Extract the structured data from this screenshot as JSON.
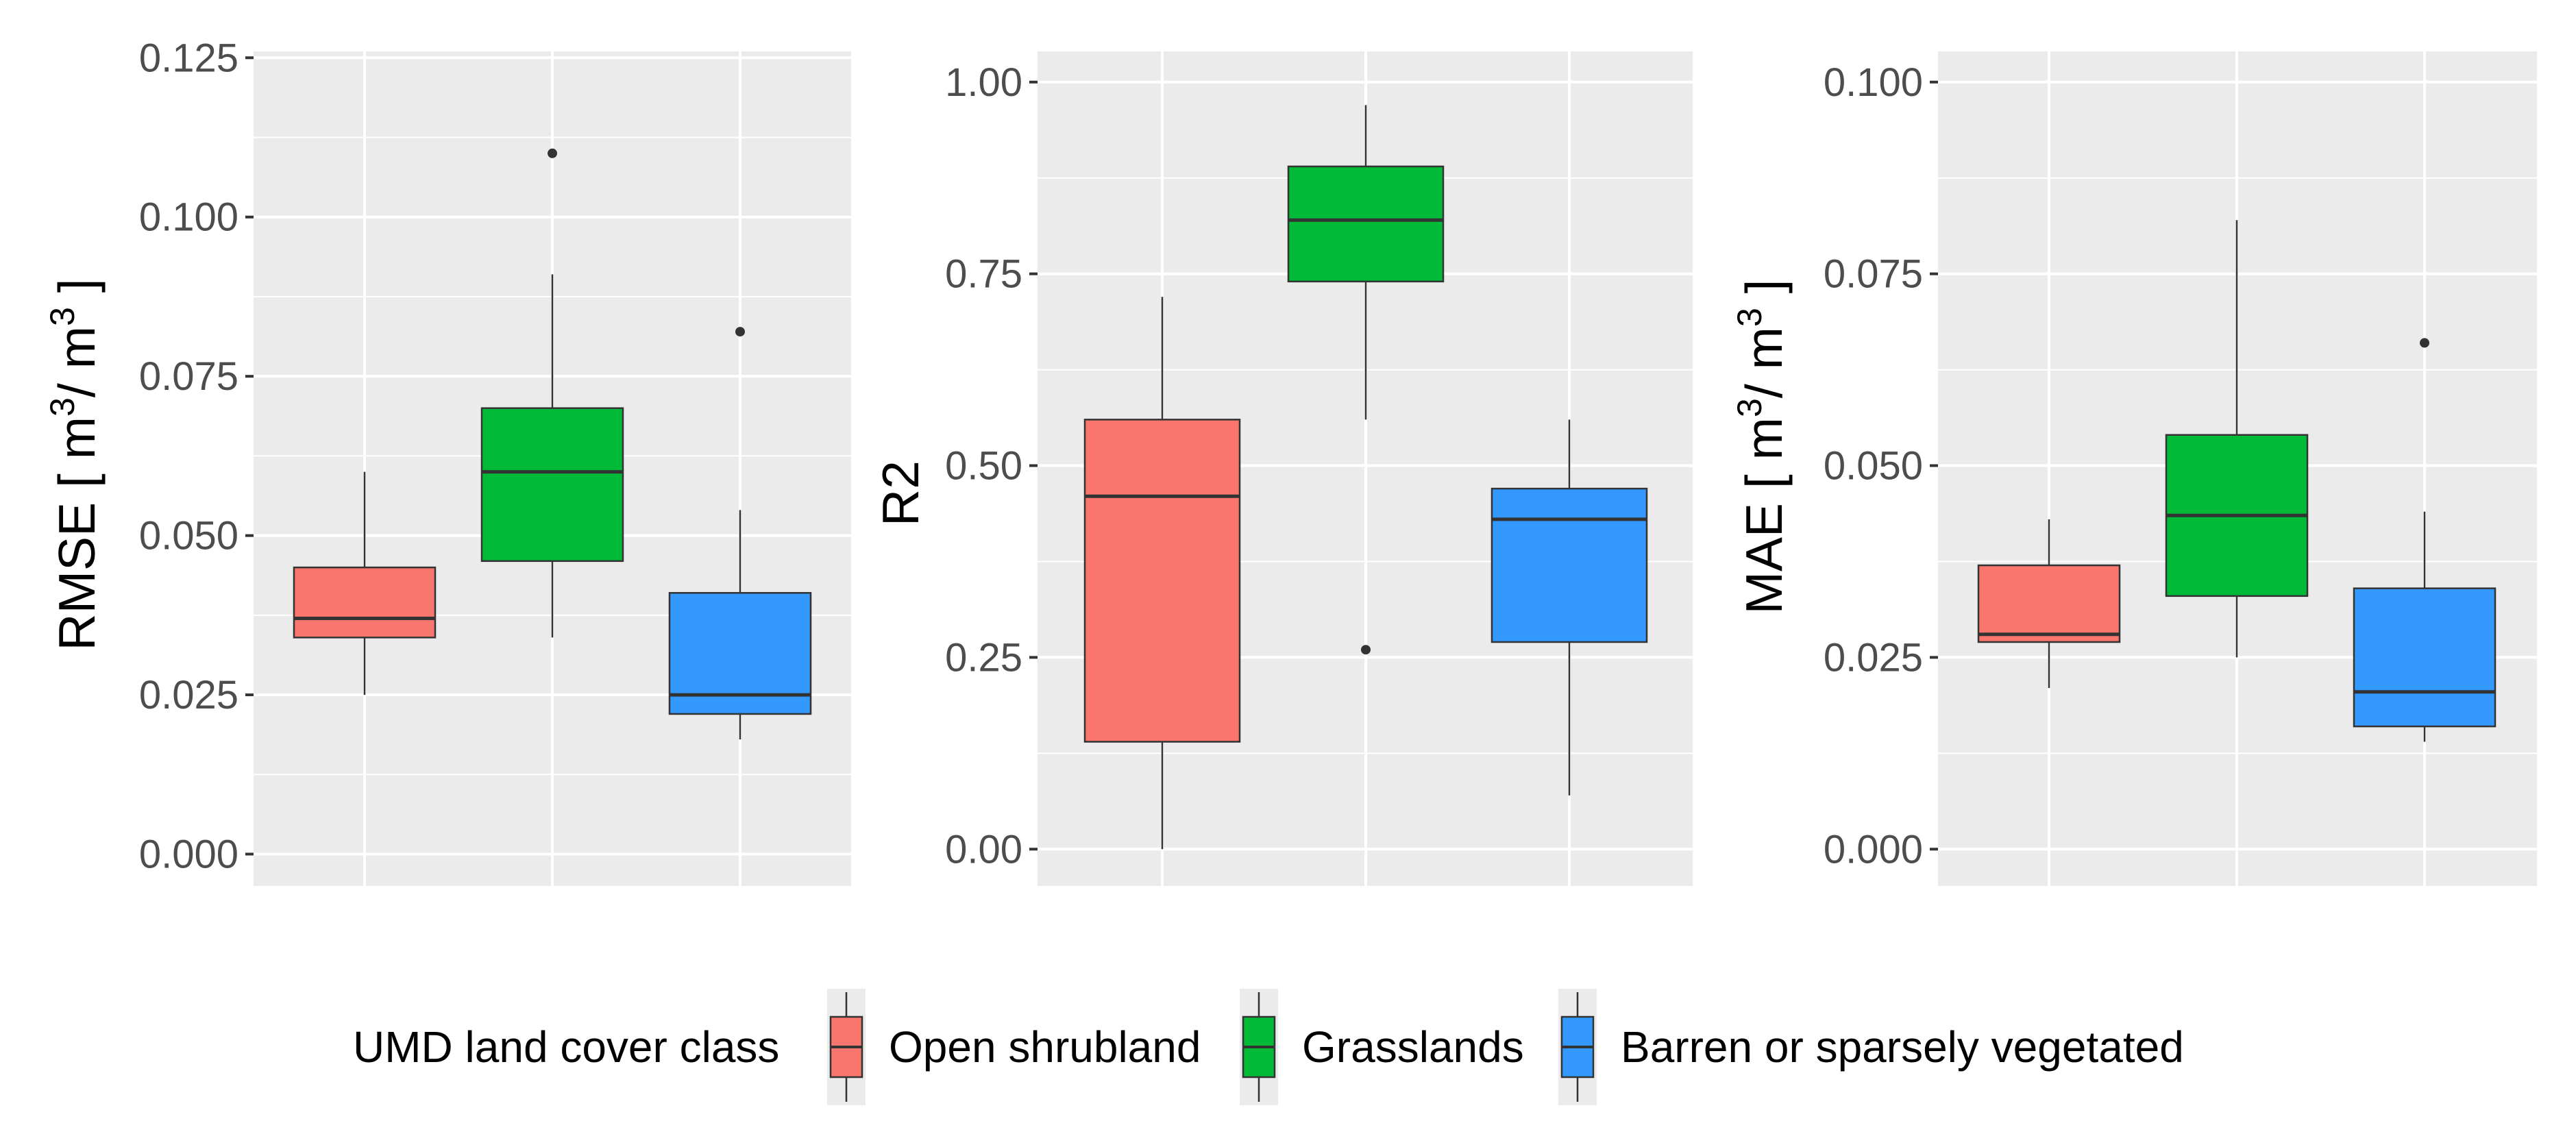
{
  "chart_data": [
    {
      "type": "boxplot",
      "title": "",
      "xlabel": "",
      "ylabel": {
        "main": "RMSE [ m",
        "sup1": "3",
        "mid": "/ m",
        "sup2": "3",
        "end": " ]"
      },
      "ylim": [
        -0.005,
        0.126
      ],
      "yticks": [
        0.0,
        0.025,
        0.05,
        0.075,
        0.1,
        0.125
      ],
      "ytick_labels": [
        "0.000",
        "0.025",
        "0.050",
        "0.075",
        "0.100",
        "0.125"
      ],
      "categories": [
        "Open shrubland",
        "Grasslands",
        "Barren or sparsely vegetated"
      ],
      "boxes": [
        {
          "whisker_low": 0.025,
          "q1": 0.034,
          "median": 0.037,
          "q3": 0.045,
          "whisker_high": 0.06,
          "outliers": []
        },
        {
          "whisker_low": 0.034,
          "q1": 0.046,
          "median": 0.06,
          "q3": 0.07,
          "whisker_high": 0.091,
          "outliers": [
            0.11
          ]
        },
        {
          "whisker_low": 0.018,
          "q1": 0.022,
          "median": 0.025,
          "q3": 0.041,
          "whisker_high": 0.054,
          "outliers": [
            0.082
          ]
        }
      ]
    },
    {
      "type": "boxplot",
      "title": "",
      "xlabel": "",
      "ylabel": {
        "main": "R2"
      },
      "ylim": [
        -0.048,
        1.04
      ],
      "yticks": [
        0.0,
        0.25,
        0.5,
        0.75,
        1.0
      ],
      "ytick_labels": [
        "0.00",
        "0.25",
        "0.50",
        "0.75",
        "1.00"
      ],
      "categories": [
        "Open shrubland",
        "Grasslands",
        "Barren or sparsely vegetated"
      ],
      "boxes": [
        {
          "whisker_low": 0.0,
          "q1": 0.14,
          "median": 0.46,
          "q3": 0.56,
          "whisker_high": 0.72,
          "outliers": []
        },
        {
          "whisker_low": 0.56,
          "q1": 0.74,
          "median": 0.82,
          "q3": 0.89,
          "whisker_high": 0.97,
          "outliers": [
            0.26
          ]
        },
        {
          "whisker_low": 0.07,
          "q1": 0.27,
          "median": 0.43,
          "q3": 0.47,
          "whisker_high": 0.56,
          "outliers": []
        }
      ]
    },
    {
      "type": "boxplot",
      "title": "",
      "xlabel": "",
      "ylabel": {
        "main": "MAE [ m",
        "sup1": "3",
        "mid": "/ m",
        "sup2": "3",
        "end": " ]"
      },
      "ylim": [
        -0.0048,
        0.104
      ],
      "yticks": [
        0.0,
        0.025,
        0.05,
        0.075,
        0.1
      ],
      "ytick_labels": [
        "0.000",
        "0.025",
        "0.050",
        "0.075",
        "0.100"
      ],
      "categories": [
        "Open shrubland",
        "Grasslands",
        "Barren or sparsely vegetated"
      ],
      "boxes": [
        {
          "whisker_low": 0.021,
          "q1": 0.027,
          "median": 0.028,
          "q3": 0.037,
          "whisker_high": 0.043,
          "outliers": []
        },
        {
          "whisker_low": 0.025,
          "q1": 0.033,
          "median": 0.0435,
          "q3": 0.054,
          "whisker_high": 0.082,
          "outliers": []
        },
        {
          "whisker_low": 0.014,
          "q1": 0.016,
          "median": 0.0205,
          "q3": 0.034,
          "whisker_high": 0.044,
          "outliers": [
            0.066
          ]
        }
      ]
    }
  ],
  "legend": {
    "title": "UMD land cover class",
    "position": "bottom",
    "items": [
      {
        "label": "Open shrubland",
        "color": "#F8766D"
      },
      {
        "label": "Grasslands",
        "color": "#00BA38"
      },
      {
        "label": "Barren or sparsely vegetated",
        "color": "#3399FF"
      }
    ]
  },
  "colors": {
    "panel_background": "#EBEBEB",
    "grid": "#FFFFFF",
    "tick_text": "#4D4D4D"
  }
}
